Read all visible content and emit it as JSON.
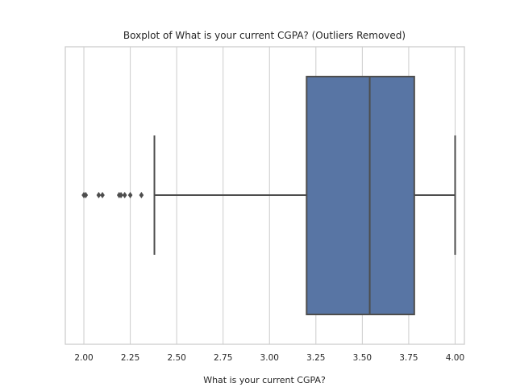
{
  "chart_data": {
    "type": "boxplot",
    "title": "Boxplot of What is your current CGPA? (Outliers Removed)",
    "xlabel": "What is your current CGPA?",
    "ylabel": "",
    "orientation": "horizontal",
    "xlim": [
      1.9,
      4.05
    ],
    "xticks": [
      2.0,
      2.25,
      2.5,
      2.75,
      3.0,
      3.25,
      3.5,
      3.75,
      4.0
    ],
    "xtick_labels": [
      "2.00",
      "2.25",
      "2.50",
      "2.75",
      "3.00",
      "3.25",
      "3.50",
      "3.75",
      "4.00"
    ],
    "grid": true,
    "box": {
      "whisker_low": 2.38,
      "q1": 3.2,
      "median": 3.54,
      "q3": 3.78,
      "whisker_high": 4.0,
      "outliers": [
        2.0,
        2.01,
        2.08,
        2.1,
        2.19,
        2.2,
        2.22,
        2.25,
        2.31
      ],
      "color": "#5875a4",
      "edge_color": "#4d4d4d"
    },
    "grid_color": "#cccccc",
    "frame_color": "#cccccc"
  }
}
